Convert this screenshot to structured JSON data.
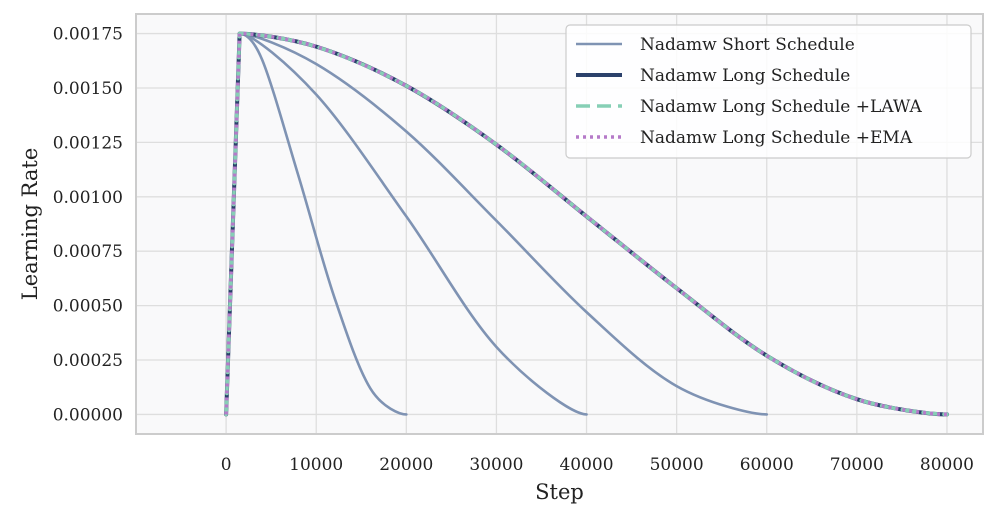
{
  "chart_data": {
    "type": "line",
    "title": "",
    "xlabel": "Step",
    "ylabel": "Learning Rate",
    "xlim": [
      -10000,
      84000
    ],
    "ylim": [
      -9e-05,
      0.00184
    ],
    "xticks": [
      0,
      10000,
      20000,
      30000,
      40000,
      50000,
      60000,
      70000,
      80000
    ],
    "xtick_labels": [
      "0",
      "10000",
      "20000",
      "30000",
      "40000",
      "50000",
      "60000",
      "70000",
      "80000"
    ],
    "yticks": [
      0,
      0.00025,
      0.0005,
      0.00075,
      0.001,
      0.00125,
      0.0015,
      0.00175
    ],
    "ytick_labels": [
      "0.00000",
      "0.00025",
      "0.00050",
      "0.00075",
      "0.00100",
      "0.00125",
      "0.00150",
      "0.00175"
    ],
    "grid": true,
    "legend_position": "top-right",
    "colors": {
      "short": "#7f93b3",
      "long": "#2b416b",
      "lawa": "#86cfb5",
      "ema": "#b57ac9",
      "plot_bg": "#f9f9fa",
      "grid": "#dedede",
      "frame": "#cccccc"
    },
    "series": [
      {
        "name": "Nadamw Short Schedule",
        "style": "solid-thin",
        "x": [
          0,
          1500,
          4000,
          8000,
          12000,
          16000,
          20000
        ],
        "y": [
          0,
          0.00175,
          0.00163,
          0.0011,
          0.00054,
          0.00012,
          0
        ]
      },
      {
        "name": "",
        "style": "solid-thin",
        "x": [
          0,
          1500,
          10000,
          20000,
          30000,
          40000
        ],
        "y": [
          0,
          0.00175,
          0.00147,
          0.00091,
          0.00031,
          0
        ]
      },
      {
        "name": "",
        "style": "solid-thin",
        "x": [
          0,
          1500,
          10000,
          20000,
          30000,
          40000,
          50000,
          60000
        ],
        "y": [
          0,
          0.00175,
          0.00161,
          0.0013,
          0.00089,
          0.00047,
          0.00013,
          0
        ]
      },
      {
        "name": "Nadamw Long Schedule",
        "style": "solid-thick",
        "x": [
          0,
          1500,
          10000,
          20000,
          30000,
          40000,
          50000,
          60000,
          70000,
          80000
        ],
        "y": [
          0,
          0.00175,
          0.00169,
          0.00151,
          0.00124,
          0.00091,
          0.00058,
          0.00027,
          7e-05,
          0
        ]
      },
      {
        "name": "Nadamw Long Schedule +LAWA",
        "style": "dashed",
        "x": [
          0,
          1500,
          10000,
          20000,
          30000,
          40000,
          50000,
          60000,
          70000,
          80000
        ],
        "y": [
          0,
          0.00175,
          0.00169,
          0.00151,
          0.00124,
          0.00091,
          0.00058,
          0.00027,
          7e-05,
          0
        ]
      },
      {
        "name": "Nadamw Long Schedule +EMA",
        "style": "dotted",
        "x": [
          0,
          1500,
          10000,
          20000,
          30000,
          40000,
          50000,
          60000,
          70000,
          80000
        ],
        "y": [
          0,
          0.00175,
          0.00169,
          0.00151,
          0.00124,
          0.00091,
          0.00058,
          0.00027,
          7e-05,
          0
        ]
      }
    ]
  }
}
